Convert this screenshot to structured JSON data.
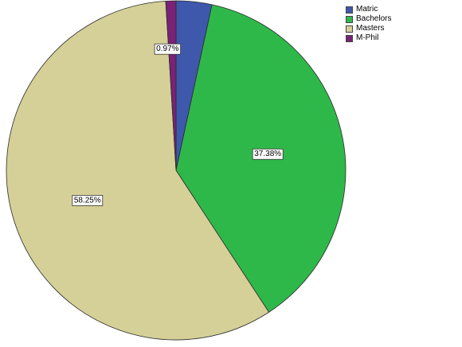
{
  "chart_data": {
    "type": "pie",
    "categories": [
      "Matric",
      "Bachelors",
      "Masters",
      "M-Phil"
    ],
    "values": [
      3.4,
      37.38,
      58.25,
      0.97
    ],
    "value_labels": [
      "",
      "37.38%",
      "58.25%",
      "0.97%"
    ],
    "colors": [
      "#3e58ac",
      "#2fb84a",
      "#d5d097",
      "#7a2277"
    ],
    "legend_position": "top-right",
    "start": "12 o'clock",
    "direction": "clockwise"
  }
}
